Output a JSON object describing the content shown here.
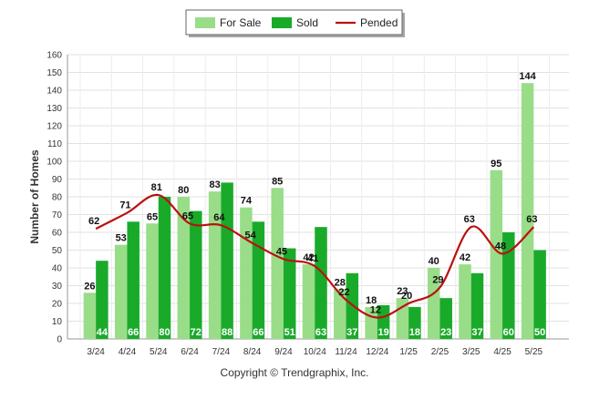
{
  "chart_data": {
    "type": "bar",
    "ylabel": "Number of Homes",
    "ylim": [
      0,
      160
    ],
    "yticks": [
      0,
      10,
      20,
      30,
      40,
      50,
      60,
      70,
      80,
      90,
      100,
      110,
      120,
      130,
      140,
      150,
      160
    ],
    "grid": true,
    "legend_position": "top-center",
    "categories": [
      "3/24",
      "4/24",
      "5/24",
      "6/24",
      "7/24",
      "8/24",
      "9/24",
      "10/24",
      "11/24",
      "12/24",
      "1/25",
      "2/25",
      "3/25",
      "4/25",
      "5/25"
    ],
    "series": [
      {
        "name": "For Sale",
        "kind": "bar",
        "color": "#99dd88",
        "values": [
          26,
          53,
          65,
          80,
          83,
          74,
          85,
          42,
          28,
          18,
          23,
          40,
          42,
          95,
          144
        ]
      },
      {
        "name": "Sold",
        "kind": "bar",
        "color": "#1aaa2a",
        "values": [
          44,
          66,
          80,
          72,
          88,
          66,
          51,
          63,
          37,
          19,
          18,
          23,
          37,
          60,
          50
        ]
      },
      {
        "name": "Pended",
        "kind": "line",
        "color": "#bb1111",
        "values": [
          62,
          71,
          81,
          65,
          64,
          54,
          45,
          41,
          22,
          12,
          20,
          29,
          63,
          48,
          63
        ]
      }
    ]
  },
  "footer": {
    "copyright": "Copyright © Trendgraphix, Inc."
  }
}
